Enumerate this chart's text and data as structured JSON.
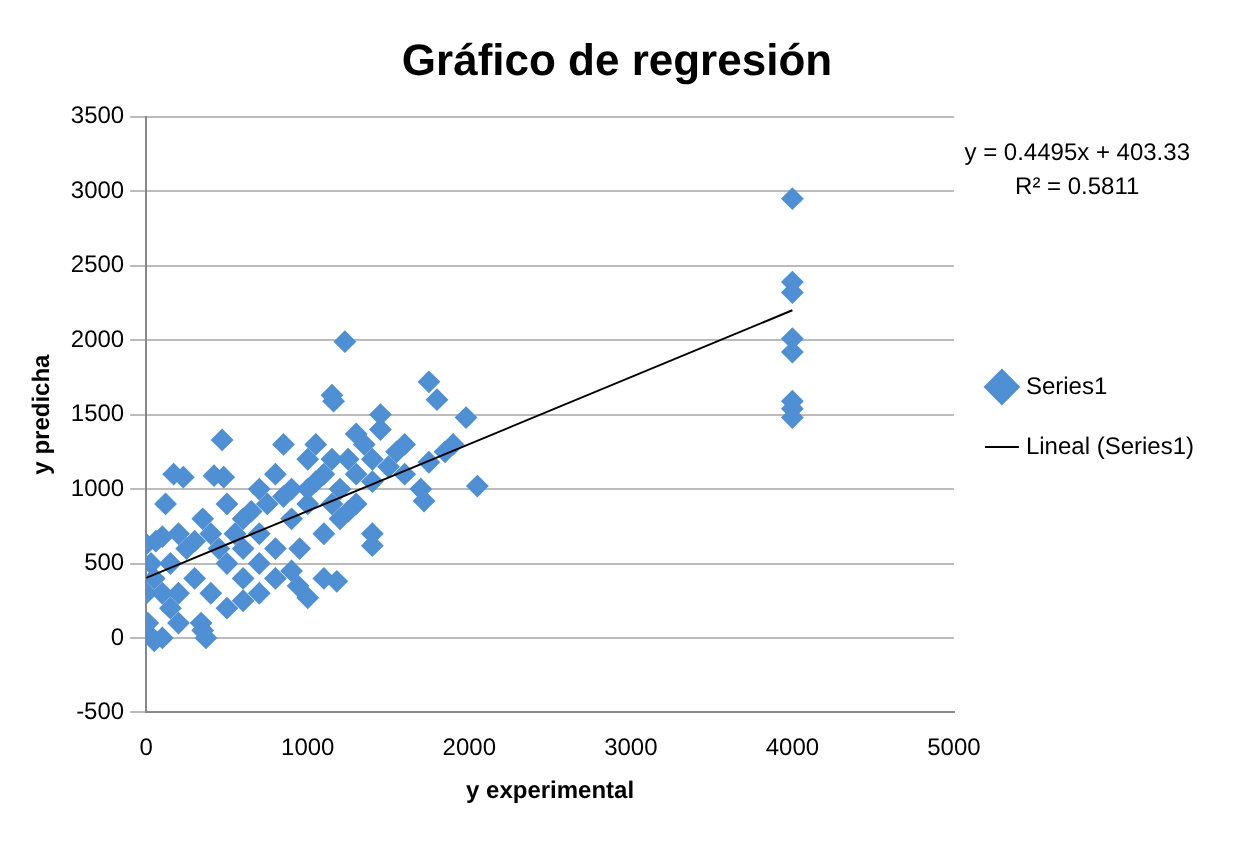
{
  "chart_data": {
    "type": "scatter",
    "title": "Gráfico de regresión",
    "xlabel": "y experimental",
    "ylabel": "y predicha",
    "annotations": [
      "y = 0.4495x + 403.33",
      "R² = 0.5811"
    ],
    "xlim": [
      0,
      5000
    ],
    "xticks": [
      0,
      1000,
      2000,
      3000,
      4000,
      5000
    ],
    "ylim": [
      -500,
      3500
    ],
    "yticks": [
      -500,
      0,
      500,
      1000,
      1500,
      2000,
      2500,
      3000,
      3500
    ],
    "grid": "y",
    "legend": "right",
    "marker": "diamond",
    "series": [
      {
        "name": "Series1",
        "color": "#4f8fd4",
        "x": [
          4000,
          4000,
          4000,
          4000,
          4000,
          4000,
          4000,
          4000,
          1230,
          1750,
          1800,
          1150,
          1160,
          1980,
          2050,
          1750,
          1720,
          1400,
          1450,
          1300,
          470,
          170,
          230,
          420,
          480,
          120,
          100,
          60,
          0,
          20,
          50,
          100,
          370,
          340,
          600,
          1000,
          940,
          1100,
          1180,
          1400,
          1400,
          600,
          800,
          900,
          1000,
          700,
          500,
          300,
          200,
          150,
          800,
          1200,
          1250,
          1350,
          1100,
          900,
          600,
          400,
          300,
          250,
          500,
          700,
          800,
          850,
          1000,
          1050,
          1150,
          1300,
          1400,
          1600,
          1700,
          1850,
          1900,
          950,
          1100,
          1200,
          1300,
          700,
          600,
          400,
          200,
          100,
          50,
          30,
          0,
          10,
          150,
          200,
          350,
          450,
          550,
          650,
          750,
          850,
          1000,
          1050,
          1150,
          1250,
          900,
          700,
          500,
          350,
          1500,
          1550,
          1600,
          1450
        ],
        "values": [
          2950,
          2390,
          2320,
          2010,
          1920,
          1590,
          1540,
          1480,
          1990,
          1720,
          1600,
          1630,
          1590,
          1480,
          1020,
          1180,
          920,
          1050,
          1500,
          1370,
          1330,
          1100,
          1080,
          1090,
          1080,
          900,
          680,
          650,
          630,
          20,
          -20,
          0,
          0,
          100,
          250,
          270,
          350,
          400,
          380,
          620,
          700,
          400,
          600,
          800,
          900,
          700,
          500,
          400,
          300,
          200,
          400,
          1000,
          1200,
          1300,
          1100,
          1000,
          800,
          700,
          650,
          600,
          900,
          1000,
          1100,
          1300,
          1200,
          1300,
          1200,
          1100,
          1200,
          1100,
          1000,
          1250,
          1300,
          600,
          700,
          800,
          900,
          500,
          600,
          300,
          100,
          300,
          400,
          500,
          300,
          100,
          500,
          700,
          800,
          600,
          700,
          850,
          900,
          950,
          1000,
          1050,
          900,
          850,
          450,
          300,
          200,
          50,
          1150,
          1250,
          1300,
          1400
        ]
      },
      {
        "name": "Lineal (Series1)",
        "color": "#000000",
        "type": "line",
        "marker": "none",
        "x": [
          0,
          4000
        ],
        "values": [
          403,
          2201
        ]
      }
    ]
  }
}
